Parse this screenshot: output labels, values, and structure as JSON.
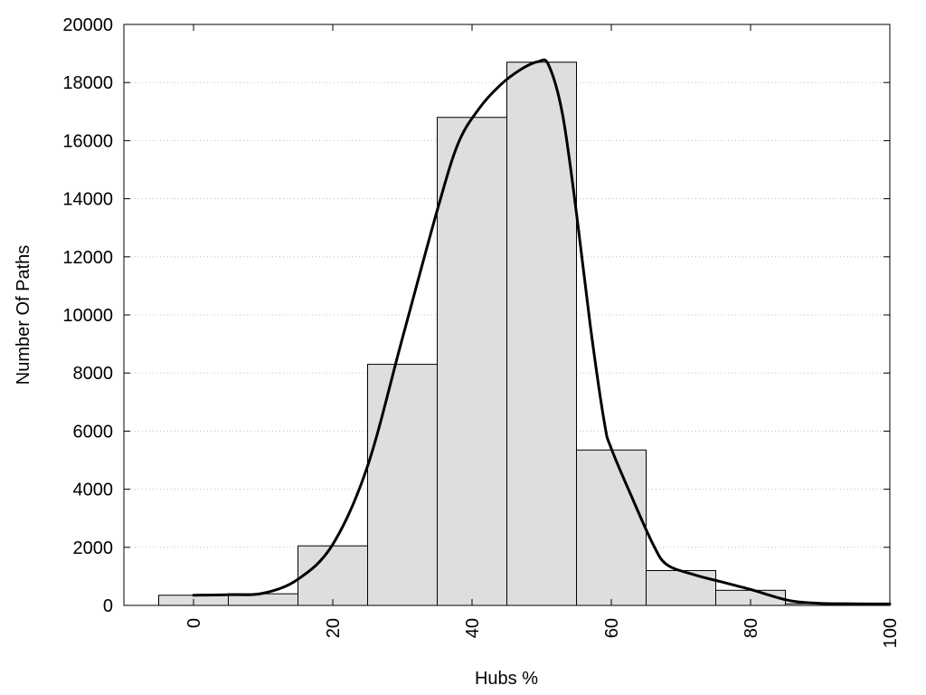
{
  "chart_data": {
    "type": "bar",
    "title": "",
    "xlabel": "Hubs %",
    "ylabel": "Number Of Paths",
    "xlim": [
      -10,
      100
    ],
    "ylim": [
      0,
      20000
    ],
    "x_ticks": [
      0,
      20,
      40,
      60,
      80,
      100
    ],
    "y_ticks": [
      0,
      2000,
      4000,
      6000,
      8000,
      10000,
      12000,
      14000,
      16000,
      18000,
      20000
    ],
    "grid": "horizontal dotted",
    "bin_width": 10,
    "bar_color": "#dedede",
    "bars": [
      {
        "x": 0,
        "value": 350
      },
      {
        "x": 10,
        "value": 400
      },
      {
        "x": 20,
        "value": 2050
      },
      {
        "x": 30,
        "value": 8300
      },
      {
        "x": 40,
        "value": 16800
      },
      {
        "x": 50,
        "value": 18700
      },
      {
        "x": 60,
        "value": 5350
      },
      {
        "x": 70,
        "value": 1200
      },
      {
        "x": 80,
        "value": 520
      },
      {
        "x": 90,
        "value": 60
      }
    ],
    "curve": {
      "color": "#000000",
      "points": [
        [
          0,
          350
        ],
        [
          5,
          370
        ],
        [
          10,
          420
        ],
        [
          15,
          900
        ],
        [
          20,
          2100
        ],
        [
          25,
          4800
        ],
        [
          30,
          9200
        ],
        [
          35,
          13600
        ],
        [
          38,
          15900
        ],
        [
          41,
          17100
        ],
        [
          44,
          17900
        ],
        [
          47,
          18450
        ],
        [
          49.5,
          18720
        ],
        [
          51,
          18600
        ],
        [
          53,
          16900
        ],
        [
          55,
          13500
        ],
        [
          57,
          9600
        ],
        [
          59,
          6300
        ],
        [
          60,
          5400
        ],
        [
          63,
          3700
        ],
        [
          66,
          2100
        ],
        [
          68,
          1400
        ],
        [
          72,
          1050
        ],
        [
          76,
          800
        ],
        [
          80,
          550
        ],
        [
          83,
          330
        ],
        [
          86,
          150
        ],
        [
          90,
          70
        ],
        [
          95,
          55
        ],
        [
          100,
          50
        ]
      ]
    }
  }
}
